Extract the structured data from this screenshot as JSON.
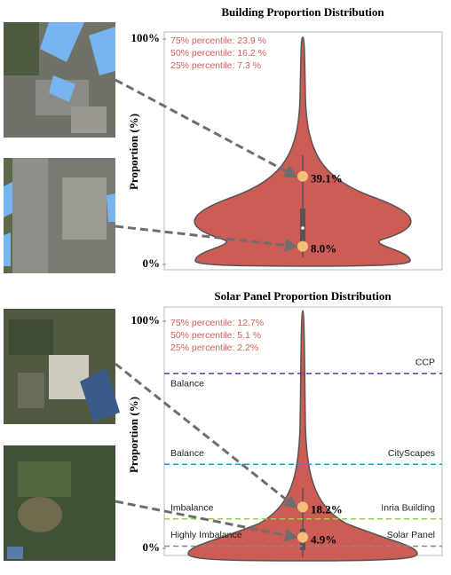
{
  "chart_data": [
    {
      "type": "violin",
      "title": "Building Proportion Distribution",
      "ylabel": "Proportion (%)",
      "ylim": [
        0,
        100
      ],
      "yticks": [
        {
          "value": 0,
          "label": "0%"
        },
        {
          "value": 100,
          "label": "100%"
        }
      ],
      "annotations": [
        "75% percentile: 23.9 %",
        "50% percentile: 16.2 %",
        "25% percentile: 7.3 %"
      ],
      "color": "#cd5c55",
      "markers": {
        "values": [
          39.1,
          8.0
        ],
        "value_labels": [
          "39.1%",
          "8.0%"
        ]
      }
    },
    {
      "type": "violin",
      "title": "Solar Panel Proportion Distribution",
      "ylabel": "Proportion (%)",
      "ylim": [
        0,
        100
      ],
      "yticks": [
        {
          "value": 0,
          "label": "0%"
        },
        {
          "value": 100,
          "label": "100%"
        }
      ],
      "annotations": [
        "75% percentile: 12.7%",
        "50% percentile: 5.1 %",
        "25% percentile: 2.2%"
      ],
      "color": "#cd5c55",
      "markers": {
        "values": [
          18.2,
          4.9
        ],
        "value_labels": [
          "18.2%",
          "4.9%"
        ]
      },
      "reference_lines": [
        {
          "name": "CCP",
          "level": "Balance",
          "value": 77,
          "color": "#7030a0"
        },
        {
          "name": "CityScapes",
          "level": "Balance",
          "value": 37,
          "color": "#00a0e0"
        },
        {
          "name": "Inria Building",
          "level": "Imbalance",
          "value": 13,
          "color": "#92d050"
        },
        {
          "name": "Solar Panel",
          "level": "Highly Imbalance",
          "value": 1,
          "color": "#888888"
        }
      ]
    }
  ]
}
